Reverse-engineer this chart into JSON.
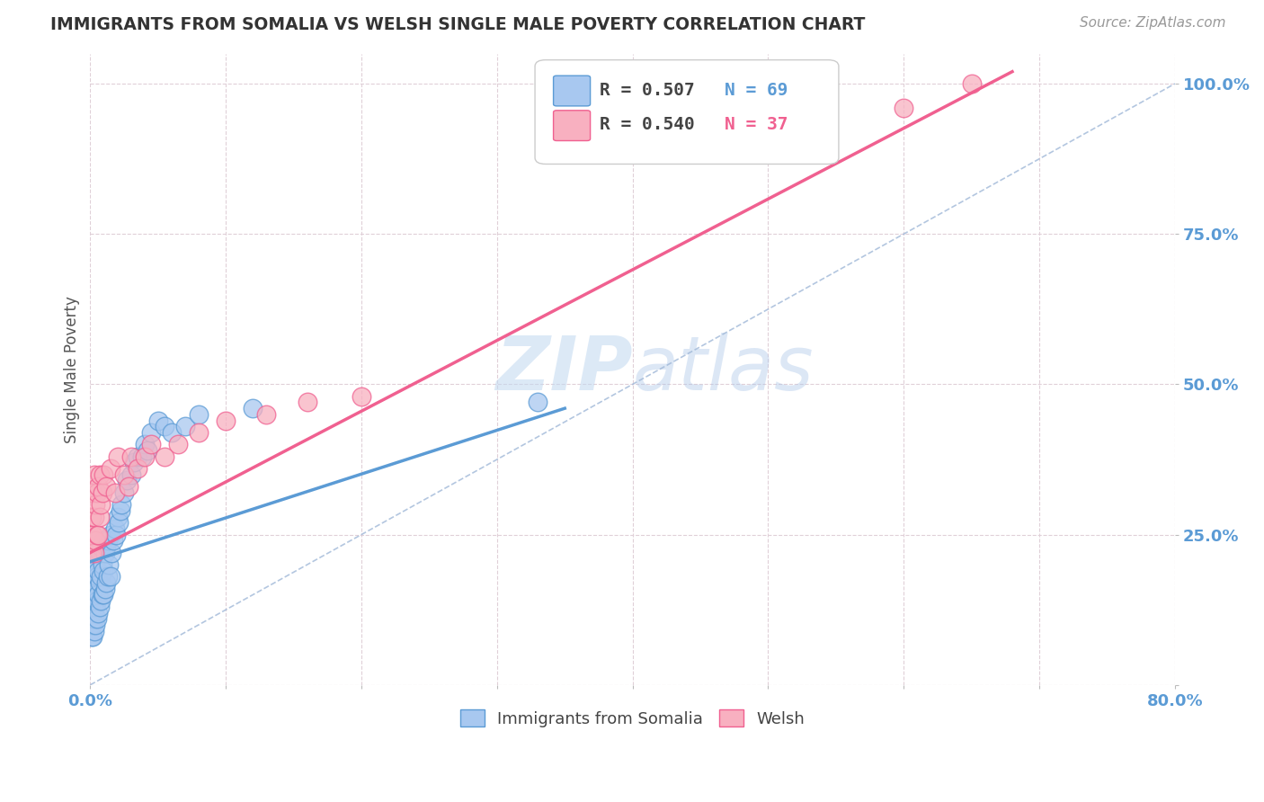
{
  "title": "IMMIGRANTS FROM SOMALIA VS WELSH SINGLE MALE POVERTY CORRELATION CHART",
  "source_text": "Source: ZipAtlas.com",
  "ylabel": "Single Male Poverty",
  "xlim": [
    0.0,
    0.8
  ],
  "ylim": [
    0.0,
    1.05
  ],
  "xticks": [
    0.0,
    0.1,
    0.2,
    0.3,
    0.4,
    0.5,
    0.6,
    0.7,
    0.8
  ],
  "xticklabels": [
    "0.0%",
    "",
    "",
    "",
    "",
    "",
    "",
    "",
    "80.0%"
  ],
  "yticks": [
    0.0,
    0.25,
    0.5,
    0.75,
    1.0
  ],
  "yticklabels": [
    "",
    "25.0%",
    "50.0%",
    "75.0%",
    "100.0%"
  ],
  "blue_color": "#A8C8F0",
  "pink_color": "#F8B0C0",
  "blue_edge_color": "#5B9BD5",
  "pink_edge_color": "#F06090",
  "blue_line_color": "#5B9BD5",
  "pink_line_color": "#F06090",
  "r_blue": "R = 0.507",
  "n_blue": "N = 69",
  "r_pink": "R = 0.540",
  "n_pink": "N = 37",
  "legend_blue_label": "Immigrants from Somalia",
  "legend_pink_label": "Welsh",
  "watermark_zip": "ZIP",
  "watermark_atlas": "atlas",
  "background_color": "#FFFFFF",
  "grid_color": "#E0D0D8",
  "tick_color": "#5B9BD5",
  "ylabel_color": "#555555",
  "title_color": "#333333",
  "source_color": "#999999",
  "diag_color": "#A0B8D8",
  "somalia_x": [
    0.001,
    0.001,
    0.001,
    0.001,
    0.002,
    0.002,
    0.002,
    0.002,
    0.002,
    0.003,
    0.003,
    0.003,
    0.003,
    0.003,
    0.004,
    0.004,
    0.004,
    0.004,
    0.005,
    0.005,
    0.005,
    0.005,
    0.006,
    0.006,
    0.006,
    0.007,
    0.007,
    0.007,
    0.008,
    0.008,
    0.008,
    0.009,
    0.009,
    0.01,
    0.01,
    0.01,
    0.011,
    0.011,
    0.012,
    0.012,
    0.013,
    0.013,
    0.014,
    0.015,
    0.015,
    0.016,
    0.017,
    0.018,
    0.019,
    0.02,
    0.021,
    0.022,
    0.023,
    0.025,
    0.027,
    0.03,
    0.032,
    0.035,
    0.038,
    0.04,
    0.042,
    0.045,
    0.05,
    0.055,
    0.06,
    0.07,
    0.08,
    0.12,
    0.33
  ],
  "somalia_y": [
    0.08,
    0.1,
    0.12,
    0.14,
    0.08,
    0.1,
    0.12,
    0.15,
    0.18,
    0.09,
    0.11,
    0.13,
    0.16,
    0.2,
    0.1,
    0.13,
    0.16,
    0.2,
    0.11,
    0.14,
    0.18,
    0.22,
    0.12,
    0.15,
    0.19,
    0.13,
    0.17,
    0.22,
    0.14,
    0.18,
    0.23,
    0.15,
    0.2,
    0.15,
    0.19,
    0.24,
    0.16,
    0.22,
    0.17,
    0.23,
    0.18,
    0.24,
    0.2,
    0.18,
    0.25,
    0.22,
    0.24,
    0.26,
    0.25,
    0.28,
    0.27,
    0.29,
    0.3,
    0.32,
    0.34,
    0.35,
    0.37,
    0.38,
    0.38,
    0.4,
    0.39,
    0.42,
    0.44,
    0.43,
    0.42,
    0.43,
    0.45,
    0.46,
    0.47
  ],
  "welsh_x": [
    0.001,
    0.001,
    0.002,
    0.002,
    0.003,
    0.003,
    0.003,
    0.004,
    0.004,
    0.005,
    0.005,
    0.006,
    0.006,
    0.007,
    0.007,
    0.008,
    0.009,
    0.01,
    0.012,
    0.015,
    0.018,
    0.02,
    0.025,
    0.028,
    0.03,
    0.035,
    0.04,
    0.045,
    0.055,
    0.065,
    0.08,
    0.1,
    0.13,
    0.16,
    0.2,
    0.6,
    0.65
  ],
  "welsh_y": [
    0.22,
    0.28,
    0.25,
    0.32,
    0.22,
    0.28,
    0.35,
    0.24,
    0.3,
    0.25,
    0.32,
    0.25,
    0.33,
    0.28,
    0.35,
    0.3,
    0.32,
    0.35,
    0.33,
    0.36,
    0.32,
    0.38,
    0.35,
    0.33,
    0.38,
    0.36,
    0.38,
    0.4,
    0.38,
    0.4,
    0.42,
    0.44,
    0.45,
    0.47,
    0.48,
    0.96,
    1.0
  ],
  "blue_line_x0": 0.0,
  "blue_line_y0": 0.205,
  "blue_line_x1": 0.35,
  "blue_line_y1": 0.46,
  "pink_line_x0": 0.0,
  "pink_line_y0": 0.22,
  "pink_line_x1": 0.68,
  "pink_line_y1": 1.02
}
